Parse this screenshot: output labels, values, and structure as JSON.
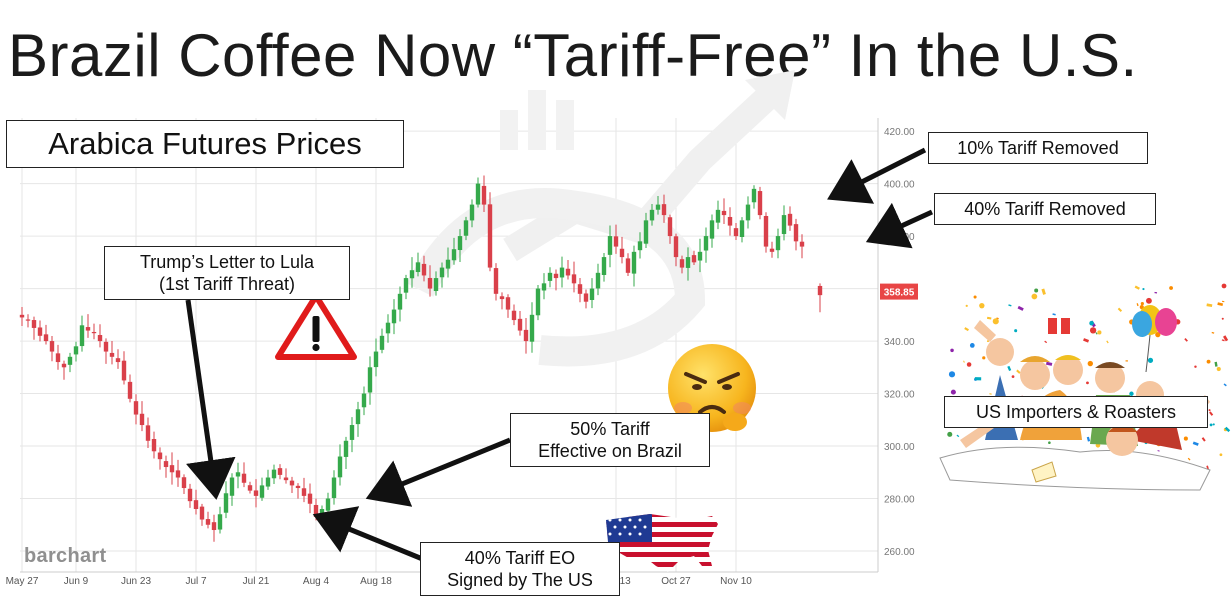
{
  "title": "Brazil Coffee Now “Tariff-Free” In the U.S.",
  "chart_title_box": "Arabica Futures Prices",
  "watermark_brand": "barchart",
  "colors": {
    "up": "#35a94b",
    "down": "#d9404a",
    "arrow": "#111111",
    "price_tag": "#e84545",
    "grid": "#e6e6e6"
  },
  "annotations": {
    "trump_letter": {
      "line1": "Trump’s Letter to Lula",
      "line2": "(1st Tariff Threat)"
    },
    "tariff_eo": {
      "line1": "40% Tariff EO",
      "line2": "Signed by The US"
    },
    "tariff_50": {
      "line1": "50% Tariff",
      "line2": "Effective on Brazil"
    },
    "removed_10": "10% Tariff Removed",
    "removed_40": "40% Tariff Removed",
    "importers": "US Importers & Roasters"
  },
  "icons": [
    "warning-triangle-icon",
    "angry-emoji-icon",
    "us-flag-map-icon",
    "celebration-crowd-icon"
  ],
  "chart_data": {
    "type": "candlestick",
    "title": "Arabica Futures Prices",
    "xlabel": "",
    "ylabel": "",
    "ylim": [
      252,
      425
    ],
    "yticks": [
      260,
      280,
      300,
      320,
      340,
      360,
      380,
      400,
      420
    ],
    "ytick_labels": [
      "260.00",
      "280.00",
      "300.00",
      "320.00",
      "340.00",
      "",
      "380.00",
      "400.00",
      "420.00"
    ],
    "x_tick_labels": [
      {
        "label": "May 27",
        "index": 0
      },
      {
        "label": "Jun 9",
        "index": 9
      },
      {
        "label": "Jun 23",
        "index": 19
      },
      {
        "label": "Jul 7",
        "index": 29
      },
      {
        "label": "Jul 21",
        "index": 39
      },
      {
        "label": "Aug 4",
        "index": 49
      },
      {
        "label": "Aug 18",
        "index": 59
      },
      {
        "label": "Oct 13",
        "index": 99
      },
      {
        "label": "Oct 27",
        "index": 109
      },
      {
        "label": "Nov 10",
        "index": 119
      }
    ],
    "last_price": "358.85",
    "last_price_value": 358.85,
    "close": [
      349,
      348,
      345,
      342,
      340,
      336,
      332,
      330,
      334,
      338,
      346,
      344,
      343,
      340,
      336,
      334,
      332,
      325,
      318,
      312,
      308,
      302,
      298,
      295,
      292,
      290,
      288,
      284,
      279,
      276,
      272,
      270,
      268,
      274,
      282,
      288,
      290,
      286,
      283,
      281,
      285,
      288,
      291,
      289,
      287,
      285,
      284,
      281,
      278,
      273,
      276,
      280,
      288,
      296,
      302,
      308,
      314,
      320,
      330,
      336,
      342,
      347,
      352,
      358,
      364,
      367,
      370,
      365,
      360,
      364,
      368,
      371,
      375,
      380,
      386,
      392,
      400,
      392,
      368,
      358,
      356,
      352,
      348,
      344,
      340,
      350,
      360,
      362,
      366,
      364,
      368,
      365,
      362,
      358,
      355,
      360,
      366,
      372,
      380,
      376,
      372,
      366,
      374,
      378,
      386,
      390,
      392,
      388,
      380,
      372,
      368,
      372,
      370,
      374,
      380,
      386,
      390,
      388,
      384,
      380,
      386,
      392,
      398,
      388,
      376,
      374,
      380,
      388,
      384,
      378,
      376
    ],
    "gap_after_index": 130,
    "gap_candle": {
      "index": 133,
      "open": 361,
      "close": 357.5,
      "high": 362,
      "low": 351
    }
  }
}
